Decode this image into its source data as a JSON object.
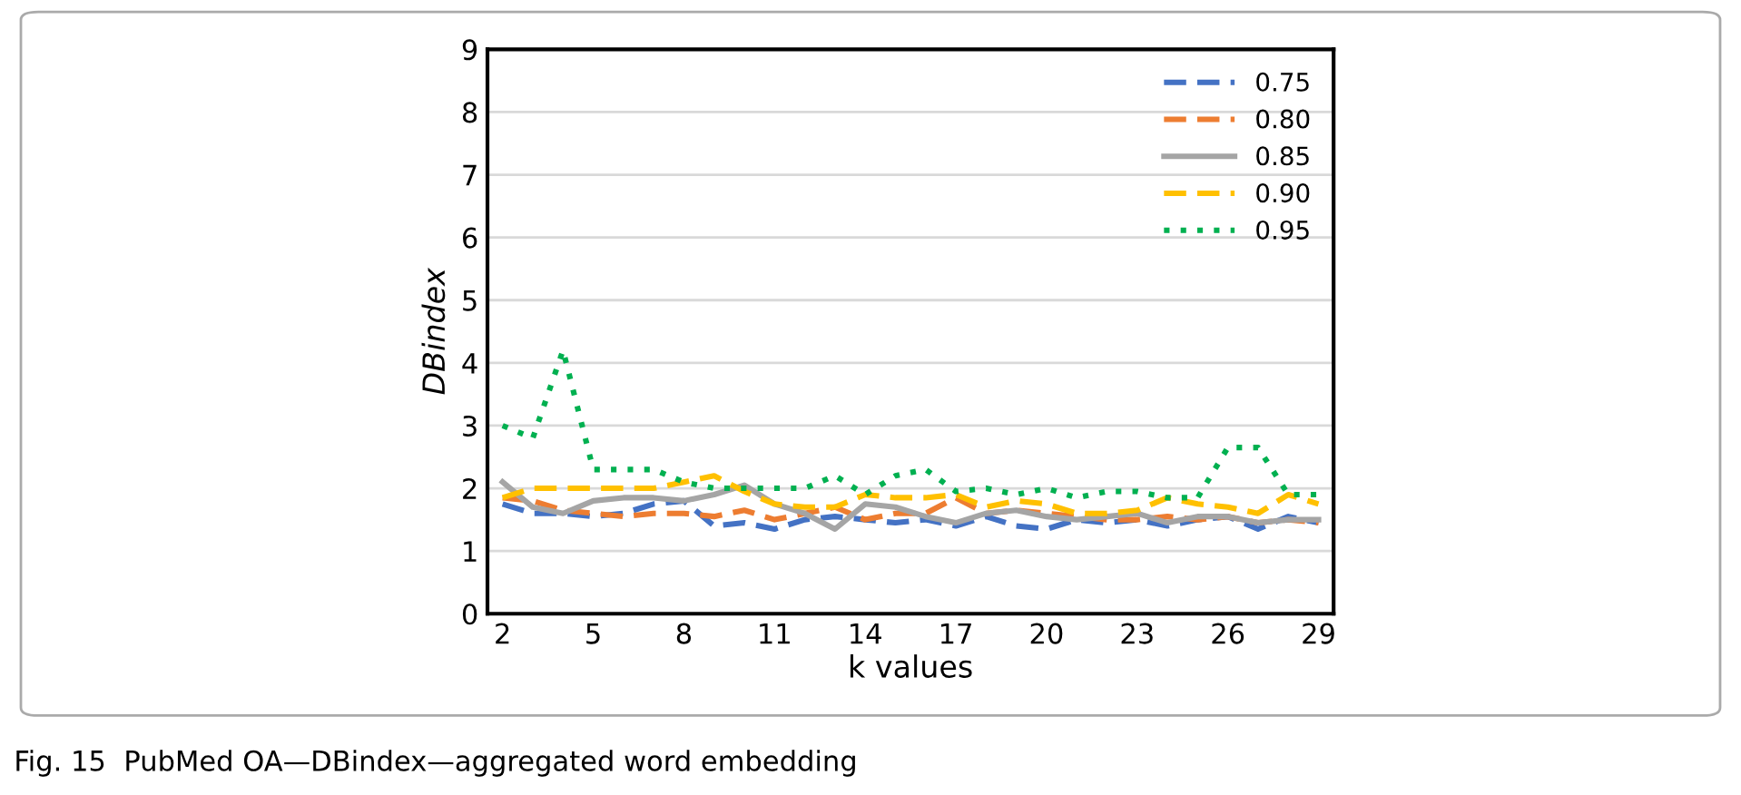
{
  "chart_data": {
    "type": "line",
    "xlabel": "k values",
    "ylabel": "DBindex",
    "categories": [
      "2",
      null,
      null,
      "5",
      null,
      null,
      "8",
      null,
      null,
      "11",
      null,
      null,
      "14",
      null,
      null,
      "17",
      null,
      null,
      "20",
      null,
      null,
      "23",
      null,
      null,
      "26",
      null,
      null,
      "29"
    ],
    "series": [
      {
        "name": "0.75",
        "color": "#4472c4",
        "line_style": "dashed",
        "values": [
          1.75,
          1.6,
          1.6,
          1.55,
          1.6,
          1.75,
          1.8,
          1.4,
          1.45,
          1.35,
          1.5,
          1.55,
          1.5,
          1.45,
          1.5,
          1.4,
          1.55,
          1.4,
          1.35,
          1.5,
          1.45,
          1.5,
          1.4,
          1.5,
          1.55,
          1.35,
          1.55,
          1.45
        ]
      },
      {
        "name": "0.80",
        "color": "#ed7d31",
        "line_style": "dashed",
        "values": [
          1.85,
          1.8,
          1.65,
          1.6,
          1.55,
          1.6,
          1.6,
          1.55,
          1.65,
          1.5,
          1.6,
          1.7,
          1.5,
          1.6,
          1.6,
          1.85,
          1.6,
          1.65,
          1.6,
          1.55,
          1.5,
          1.5,
          1.55,
          1.5,
          1.55,
          1.45,
          1.5,
          1.45
        ]
      },
      {
        "name": "0.85",
        "color": "#a5a5a5",
        "line_style": "solid",
        "values": [
          2.1,
          1.7,
          1.6,
          1.8,
          1.85,
          1.85,
          1.8,
          1.9,
          2.05,
          1.75,
          1.6,
          1.35,
          1.75,
          1.7,
          1.55,
          1.45,
          1.6,
          1.65,
          1.55,
          1.5,
          1.55,
          1.6,
          1.45,
          1.55,
          1.55,
          1.45,
          1.5,
          1.5
        ]
      },
      {
        "name": "0.90",
        "color": "#ffc000",
        "line_style": "dashed",
        "values": [
          1.85,
          2.0,
          2.0,
          2.0,
          2.0,
          2.0,
          2.1,
          2.2,
          1.95,
          1.75,
          1.7,
          1.7,
          1.9,
          1.85,
          1.85,
          1.9,
          1.7,
          1.8,
          1.75,
          1.6,
          1.6,
          1.65,
          1.85,
          1.75,
          1.7,
          1.6,
          1.9,
          1.75
        ]
      },
      {
        "name": "0.95",
        "color": "#00b050",
        "line_style": "dotted",
        "values": [
          3.0,
          2.8,
          4.2,
          2.3,
          2.3,
          2.3,
          2.1,
          2.0,
          2.0,
          2.0,
          2.0,
          2.2,
          1.9,
          2.2,
          2.3,
          1.95,
          2.0,
          1.9,
          2.0,
          1.85,
          1.95,
          1.95,
          1.85,
          1.85,
          2.65,
          2.65,
          1.9,
          1.9
        ]
      }
    ],
    "ylim": [
      0,
      9
    ],
    "yticks": [
      0,
      1,
      2,
      3,
      4,
      5,
      6,
      7,
      8,
      9
    ],
    "grid": "y",
    "legend": "top right",
    "annotations": [
      "Fig. 15  PubMed OA—DBindex—aggregated word embedding"
    ]
  }
}
